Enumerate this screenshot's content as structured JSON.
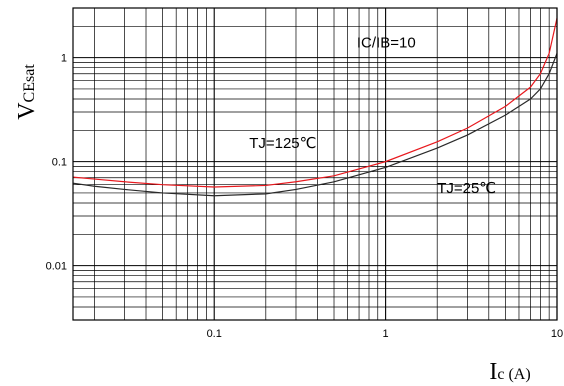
{
  "chart_data": {
    "type": "line",
    "xscale": "log",
    "yscale": "log",
    "xlim": [
      0.015,
      10
    ],
    "ylim": [
      0.003,
      3
    ],
    "grid": true,
    "xlabel": {
      "main": "I",
      "sub": "c",
      "unit": " (A)"
    },
    "ylabel": {
      "main": "V",
      "sub": "CEsat"
    },
    "xticks": [
      {
        "value": 0.1,
        "label": "0.1"
      },
      {
        "value": 1,
        "label": "1"
      },
      {
        "value": 10,
        "label": "10"
      }
    ],
    "yticks": [
      {
        "value": 1,
        "label": "1"
      },
      {
        "value": 0.1,
        "label": "0.1"
      },
      {
        "value": 0.01,
        "label": "0.01"
      }
    ],
    "annotations": [
      {
        "id": "condition",
        "text": "IC/IB=10",
        "x": 0.68,
        "y": 1.25
      },
      {
        "id": "tj125",
        "text": "TJ=125℃",
        "x": 0.16,
        "y": 0.135
      },
      {
        "id": "tj25",
        "text": "TJ=25℃",
        "x": 2.0,
        "y": 0.05
      }
    ],
    "series": [
      {
        "name": "TJ=125℃",
        "color": "#e8191e",
        "points": [
          [
            0.015,
            0.071
          ],
          [
            0.02,
            0.068
          ],
          [
            0.03,
            0.064
          ],
          [
            0.05,
            0.06
          ],
          [
            0.1,
            0.057
          ],
          [
            0.2,
            0.059
          ],
          [
            0.3,
            0.064
          ],
          [
            0.5,
            0.073
          ],
          [
            1,
            0.1
          ],
          [
            2,
            0.155
          ],
          [
            3,
            0.21
          ],
          [
            5,
            0.34
          ],
          [
            7,
            0.52
          ],
          [
            8,
            0.7
          ],
          [
            9,
            1.1
          ],
          [
            10,
            2.4
          ]
        ]
      },
      {
        "name": "TJ=25℃",
        "color": "#2a2a2a",
        "points": [
          [
            0.015,
            0.062
          ],
          [
            0.02,
            0.058
          ],
          [
            0.03,
            0.054
          ],
          [
            0.05,
            0.05
          ],
          [
            0.1,
            0.047
          ],
          [
            0.2,
            0.049
          ],
          [
            0.3,
            0.054
          ],
          [
            0.5,
            0.064
          ],
          [
            1,
            0.088
          ],
          [
            2,
            0.135
          ],
          [
            3,
            0.18
          ],
          [
            5,
            0.28
          ],
          [
            7,
            0.4
          ],
          [
            8,
            0.5
          ],
          [
            9,
            0.7
          ],
          [
            10,
            1.1
          ]
        ]
      }
    ]
  }
}
